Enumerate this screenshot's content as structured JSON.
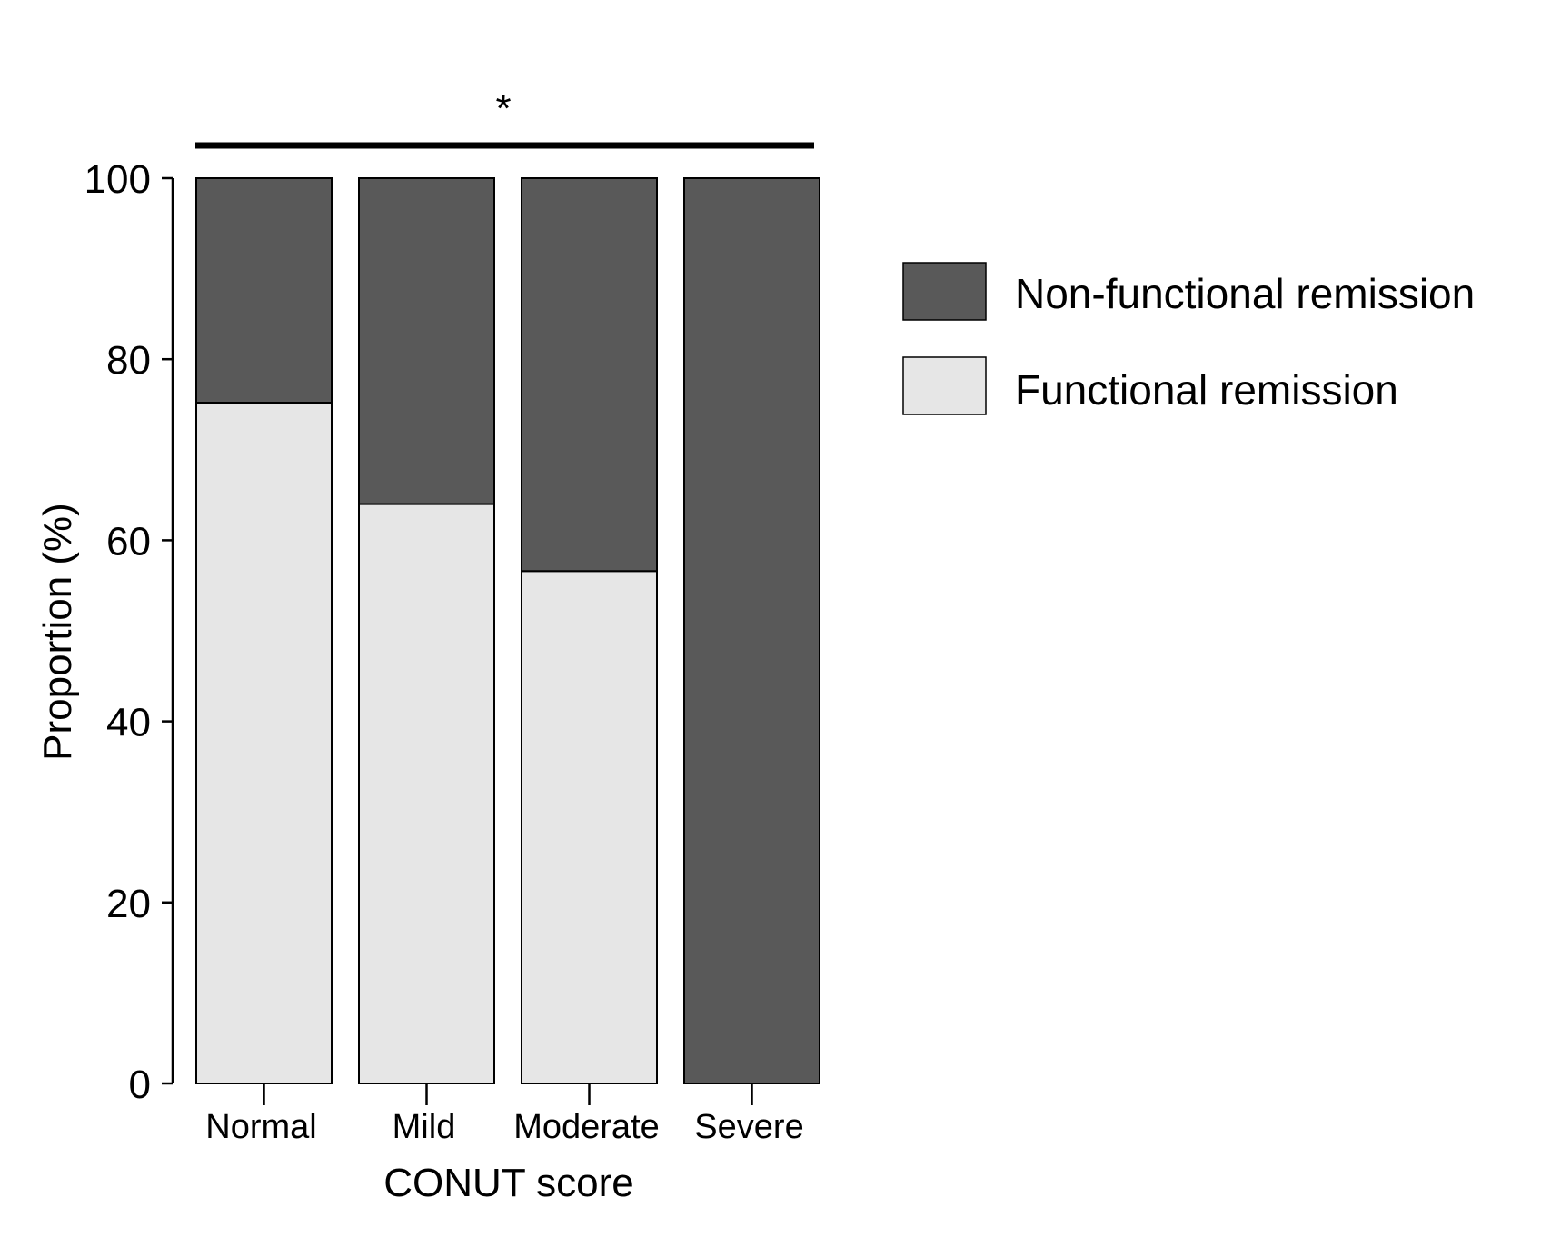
{
  "chart_data": {
    "type": "bar",
    "stacked": true,
    "categories": [
      "Normal",
      "Mild",
      "Moderate",
      "Severe"
    ],
    "series": [
      {
        "name": "Functional remission",
        "values": [
          75.2,
          64.0,
          56.6,
          0
        ],
        "color": "#e6e6e6"
      },
      {
        "name": "Non-functional remission",
        "values": [
          24.8,
          36.0,
          43.4,
          100
        ],
        "color": "#595959"
      }
    ],
    "xlabel": "CONUT score",
    "ylabel": "Proportion (%)",
    "ylim": [
      0,
      100
    ],
    "yticks": [
      "0",
      "20",
      "40",
      "60",
      "80",
      "100"
    ],
    "legend": {
      "position": "right",
      "items": [
        "Non-functional remission",
        "Functional remission"
      ]
    },
    "annotations": {
      "significance_marker": "*"
    },
    "grid": false
  }
}
